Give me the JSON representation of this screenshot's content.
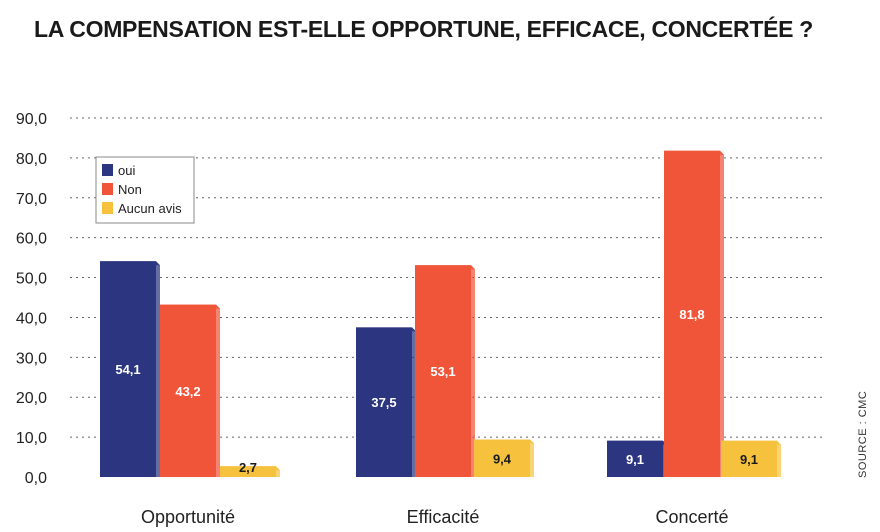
{
  "chart_data": {
    "type": "bar",
    "title": "LA COMPENSATION EST-ELLE OPPORTUNE, EFFICACE, CONCERTÉE ?",
    "categories": [
      "Opportunité",
      "Efficacité",
      "Concerté"
    ],
    "series": [
      {
        "name": "oui",
        "values": [
          54.1,
          37.5,
          9.1
        ],
        "labels": [
          "54,1",
          "37,5",
          "9,1"
        ],
        "color": "#2b3580",
        "label_color": "#ffffff"
      },
      {
        "name": "Non",
        "values": [
          43.2,
          53.1,
          81.8
        ],
        "labels": [
          "43,2",
          "53,1",
          "81,8"
        ],
        "color": "#f0553a",
        "label_color": "#ffffff"
      },
      {
        "name": "Aucun avis",
        "values": [
          2.7,
          9.4,
          9.1
        ],
        "labels": [
          "2,7",
          "9,4",
          "9,1"
        ],
        "color": "#f6c23e",
        "label_color": "#1a1a1a"
      }
    ],
    "yticks": [
      "0,0",
      "10,0",
      "20,0",
      "30,0",
      "40,0",
      "50,0",
      "60,0",
      "70,0",
      "80,0",
      "90,0"
    ],
    "ylim": [
      0,
      90
    ],
    "xlabel": "",
    "ylabel": "",
    "grid": true,
    "legend_position": "top-left",
    "source": "SOURCE : CMC"
  }
}
